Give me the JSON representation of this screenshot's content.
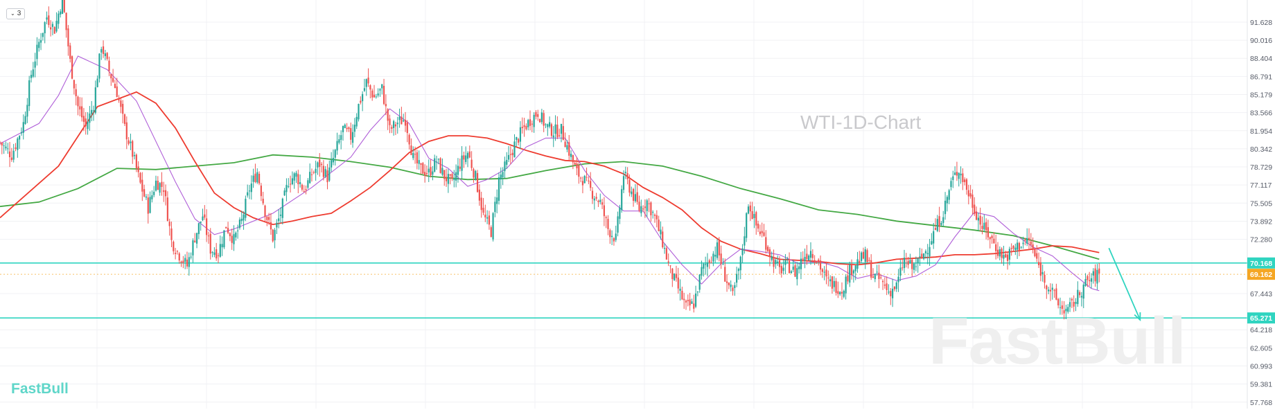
{
  "header": {
    "indicator_count": "3"
  },
  "chart_title": "WTI-1D-Chart",
  "logo": "FastBull",
  "watermark": "FastBull",
  "colors": {
    "bull": "#26a69a",
    "bear": "#ef5350",
    "ma_fast": "#b05fd8",
    "ma_mid": "#ee3b2f",
    "ma_slow": "#43a843",
    "level": "#2fd4c0",
    "price_tag": "#f5a623",
    "arrow": "#2fd4c0"
  },
  "chart_data": {
    "type": "line",
    "title": "WTI-1D-Chart",
    "instrument": "WTI",
    "timeframe": "1D",
    "xlabel": "",
    "ylabel": "",
    "ylim": [
      57.2,
      93.6
    ],
    "y_ticks": [
      "91.628",
      "90.016",
      "88.404",
      "86.791",
      "85.179",
      "83.566",
      "81.954",
      "80.342",
      "78.729",
      "77.117",
      "75.505",
      "73.892",
      "72.280",
      "67.443",
      "64.218",
      "62.605",
      "60.993",
      "59.381",
      "57.768"
    ],
    "grid": true,
    "current_price": {
      "label": "69.162",
      "value": 69.162
    },
    "levels": [
      {
        "label": "70.168",
        "value": 70.168
      },
      {
        "label": "65.271",
        "value": 65.271
      }
    ],
    "series": [
      {
        "key": "price",
        "style": "candlestick",
        "close_path": [
          [
            0,
            80.9
          ],
          [
            6,
            79.8
          ],
          [
            12,
            82.6
          ],
          [
            16,
            87.0
          ],
          [
            20,
            89.8
          ],
          [
            24,
            92.1
          ],
          [
            28,
            91.0
          ],
          [
            32,
            93.8
          ],
          [
            36,
            88.1
          ],
          [
            40,
            84.1
          ],
          [
            44,
            82.3
          ],
          [
            48,
            84.3
          ],
          [
            52,
            89.6
          ],
          [
            56,
            87.3
          ],
          [
            60,
            85.4
          ],
          [
            64,
            82.2
          ],
          [
            68,
            79.9
          ],
          [
            72,
            77.2
          ],
          [
            76,
            75.1
          ],
          [
            80,
            77.4
          ],
          [
            84,
            76.9
          ],
          [
            88,
            72.1
          ],
          [
            92,
            70.9
          ],
          [
            96,
            69.9
          ],
          [
            100,
            72.5
          ],
          [
            104,
            74.4
          ],
          [
            108,
            71.4
          ],
          [
            112,
            71.1
          ],
          [
            116,
            73.5
          ],
          [
            120,
            72.2
          ],
          [
            124,
            73.9
          ],
          [
            128,
            76.8
          ],
          [
            132,
            78.3
          ],
          [
            136,
            74.8
          ],
          [
            140,
            72.4
          ],
          [
            144,
            74.6
          ],
          [
            148,
            77.5
          ],
          [
            152,
            78.0
          ],
          [
            156,
            76.6
          ],
          [
            160,
            78.1
          ],
          [
            164,
            79.0
          ],
          [
            168,
            77.8
          ],
          [
            172,
            80.0
          ],
          [
            176,
            82.1
          ],
          [
            180,
            81.4
          ],
          [
            184,
            84.2
          ],
          [
            188,
            86.3
          ],
          [
            192,
            84.9
          ],
          [
            196,
            85.7
          ],
          [
            200,
            82.0
          ],
          [
            204,
            82.7
          ],
          [
            208,
            83.0
          ],
          [
            212,
            79.5
          ],
          [
            216,
            78.5
          ],
          [
            220,
            78.2
          ],
          [
            224,
            79.3
          ],
          [
            228,
            77.9
          ],
          [
            232,
            77.2
          ],
          [
            236,
            79.0
          ],
          [
            240,
            80.0
          ],
          [
            244,
            77.8
          ],
          [
            248,
            74.4
          ],
          [
            252,
            73.0
          ],
          [
            256,
            77.6
          ],
          [
            260,
            79.0
          ],
          [
            264,
            80.7
          ],
          [
            268,
            82.0
          ],
          [
            272,
            82.9
          ],
          [
            276,
            83.6
          ],
          [
            280,
            82.4
          ],
          [
            284,
            81.9
          ],
          [
            288,
            82.0
          ],
          [
            292,
            80.1
          ],
          [
            296,
            78.2
          ],
          [
            300,
            77.5
          ],
          [
            304,
            76.4
          ],
          [
            308,
            75.6
          ],
          [
            312,
            73.2
          ],
          [
            316,
            72.3
          ],
          [
            320,
            78.1
          ],
          [
            324,
            76.5
          ],
          [
            328,
            75.0
          ],
          [
            332,
            75.7
          ],
          [
            336,
            74.2
          ],
          [
            340,
            72.0
          ],
          [
            344,
            69.4
          ],
          [
            348,
            67.9
          ],
          [
            352,
            66.2
          ],
          [
            356,
            66.5
          ],
          [
            360,
            69.5
          ],
          [
            364,
            70.5
          ],
          [
            368,
            71.5
          ],
          [
            372,
            69.0
          ],
          [
            376,
            67.2
          ],
          [
            380,
            70.3
          ],
          [
            384,
            75.6
          ],
          [
            388,
            73.5
          ],
          [
            392,
            72.4
          ],
          [
            396,
            70.6
          ],
          [
            400,
            69.5
          ],
          [
            404,
            70.0
          ],
          [
            408,
            69.3
          ],
          [
            412,
            70.7
          ],
          [
            416,
            71.3
          ],
          [
            420,
            70.2
          ],
          [
            424,
            68.6
          ],
          [
            428,
            68.2
          ],
          [
            432,
            67.8
          ],
          [
            436,
            69.5
          ],
          [
            440,
            70.3
          ],
          [
            444,
            70.8
          ],
          [
            448,
            69.0
          ],
          [
            452,
            68.6
          ],
          [
            456,
            67.6
          ],
          [
            460,
            68.1
          ],
          [
            464,
            70.5
          ],
          [
            468,
            69.7
          ],
          [
            472,
            70.4
          ],
          [
            476,
            71.6
          ],
          [
            480,
            73.2
          ],
          [
            484,
            74.7
          ],
          [
            488,
            77.3
          ],
          [
            492,
            78.6
          ],
          [
            496,
            76.8
          ],
          [
            500,
            75.0
          ],
          [
            504,
            73.4
          ],
          [
            508,
            72.5
          ],
          [
            512,
            71.3
          ],
          [
            516,
            70.6
          ],
          [
            520,
            71.4
          ],
          [
            524,
            71.9
          ],
          [
            528,
            72.2
          ],
          [
            532,
            70.3
          ],
          [
            536,
            68.7
          ],
          [
            540,
            67.5
          ],
          [
            544,
            66.2
          ],
          [
            548,
            65.9
          ],
          [
            552,
            66.9
          ],
          [
            556,
            68.1
          ],
          [
            560,
            68.8
          ],
          [
            564,
            69.2
          ]
        ]
      },
      {
        "key": "ma_fast",
        "style": "line",
        "points": [
          [
            0,
            80.8
          ],
          [
            20,
            82.6
          ],
          [
            30,
            85.1
          ],
          [
            40,
            88.6
          ],
          [
            55,
            87.4
          ],
          [
            70,
            84.6
          ],
          [
            90,
            77.4
          ],
          [
            100,
            74.1
          ],
          [
            110,
            72.7
          ],
          [
            120,
            73.2
          ],
          [
            140,
            74.6
          ],
          [
            160,
            76.9
          ],
          [
            180,
            79.6
          ],
          [
            190,
            82.0
          ],
          [
            200,
            83.9
          ],
          [
            210,
            82.6
          ],
          [
            220,
            79.5
          ],
          [
            230,
            78.6
          ],
          [
            240,
            77.0
          ],
          [
            250,
            77.6
          ],
          [
            260,
            78.6
          ],
          [
            270,
            80.5
          ],
          [
            280,
            81.3
          ],
          [
            290,
            81.3
          ],
          [
            300,
            78.4
          ],
          [
            310,
            76.2
          ],
          [
            320,
            74.8
          ],
          [
            330,
            74.8
          ],
          [
            340,
            72.1
          ],
          [
            350,
            70.0
          ],
          [
            360,
            68.3
          ],
          [
            370,
            70.1
          ],
          [
            380,
            71.4
          ],
          [
            390,
            71.2
          ],
          [
            400,
            70.9
          ],
          [
            410,
            70.1
          ],
          [
            420,
            70.3
          ],
          [
            430,
            69.8
          ],
          [
            440,
            68.8
          ],
          [
            450,
            69.2
          ],
          [
            460,
            68.6
          ],
          [
            470,
            69.0
          ],
          [
            480,
            70.0
          ],
          [
            490,
            72.5
          ],
          [
            500,
            74.7
          ],
          [
            510,
            74.3
          ],
          [
            520,
            72.8
          ],
          [
            530,
            71.6
          ],
          [
            540,
            70.8
          ],
          [
            550,
            69.3
          ],
          [
            560,
            67.9
          ],
          [
            564,
            67.7
          ]
        ]
      },
      {
        "key": "ma_mid",
        "style": "line",
        "points": [
          [
            0,
            74.2
          ],
          [
            30,
            78.8
          ],
          [
            50,
            84.1
          ],
          [
            70,
            85.4
          ],
          [
            80,
            84.4
          ],
          [
            90,
            82.2
          ],
          [
            100,
            79.2
          ],
          [
            110,
            76.4
          ],
          [
            120,
            75.1
          ],
          [
            130,
            74.2
          ],
          [
            140,
            73.6
          ],
          [
            150,
            73.9
          ],
          [
            160,
            74.3
          ],
          [
            170,
            74.6
          ],
          [
            180,
            75.7
          ],
          [
            190,
            76.9
          ],
          [
            200,
            78.4
          ],
          [
            210,
            80.0
          ],
          [
            220,
            81.0
          ],
          [
            230,
            81.5
          ],
          [
            240,
            81.5
          ],
          [
            250,
            81.3
          ],
          [
            260,
            80.8
          ],
          [
            270,
            80.2
          ],
          [
            280,
            79.7
          ],
          [
            290,
            79.3
          ],
          [
            300,
            79.2
          ],
          [
            310,
            78.8
          ],
          [
            320,
            78.1
          ],
          [
            330,
            76.9
          ],
          [
            340,
            76.0
          ],
          [
            350,
            74.9
          ],
          [
            360,
            73.3
          ],
          [
            370,
            72.1
          ],
          [
            380,
            71.4
          ],
          [
            390,
            71.0
          ],
          [
            400,
            70.5
          ],
          [
            410,
            70.4
          ],
          [
            420,
            70.3
          ],
          [
            430,
            70.1
          ],
          [
            440,
            70.0
          ],
          [
            450,
            70.2
          ],
          [
            460,
            70.5
          ],
          [
            470,
            70.6
          ],
          [
            480,
            70.7
          ],
          [
            490,
            70.9
          ],
          [
            500,
            70.9
          ],
          [
            510,
            71.0
          ],
          [
            520,
            71.2
          ],
          [
            530,
            71.4
          ],
          [
            540,
            71.7
          ],
          [
            550,
            71.6
          ],
          [
            564,
            71.1
          ]
        ]
      },
      {
        "key": "ma_slow",
        "style": "line",
        "points": [
          [
            0,
            75.2
          ],
          [
            20,
            75.6
          ],
          [
            40,
            76.8
          ],
          [
            60,
            78.6
          ],
          [
            80,
            78.5
          ],
          [
            100,
            78.8
          ],
          [
            120,
            79.1
          ],
          [
            140,
            79.8
          ],
          [
            160,
            79.6
          ],
          [
            180,
            79.2
          ],
          [
            200,
            78.7
          ],
          [
            220,
            77.9
          ],
          [
            240,
            77.6
          ],
          [
            260,
            77.7
          ],
          [
            280,
            78.4
          ],
          [
            300,
            79.0
          ],
          [
            320,
            79.2
          ],
          [
            340,
            78.8
          ],
          [
            360,
            77.9
          ],
          [
            380,
            76.8
          ],
          [
            400,
            75.9
          ],
          [
            420,
            74.9
          ],
          [
            440,
            74.5
          ],
          [
            460,
            73.9
          ],
          [
            480,
            73.5
          ],
          [
            500,
            73.1
          ],
          [
            520,
            72.6
          ],
          [
            540,
            71.7
          ],
          [
            564,
            70.5
          ]
        ]
      }
    ],
    "annotations": [
      {
        "type": "arrow",
        "from": [
          569,
          71.5
        ],
        "to": [
          585,
          65.1
        ]
      }
    ],
    "x_domain": [
      0,
      640
    ]
  }
}
